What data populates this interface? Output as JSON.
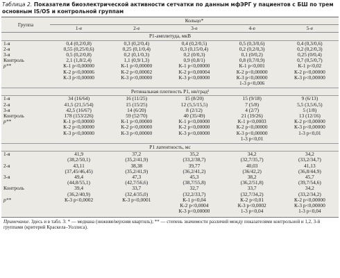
{
  "title_label": "Таблица 2.",
  "title": "Показатели биоэлектрической активности сетчатки по данным мфЭРГ у пациентов с БШ по трем основным IS/OS и контрольной группам",
  "header": {
    "group": "Группа",
    "ring": "Кольцо*",
    "rings": [
      "1-е",
      "2-е",
      "3-е",
      "4-е",
      "5-е"
    ]
  },
  "sections": [
    {
      "title": "P1-амплитуда, мкВ",
      "rows": [
        {
          "group": "1-я",
          "cells": [
            [
              "0,4 (0,2/0,8)"
            ],
            [
              "0,3 (0,2/0,4)"
            ],
            [
              "0,4 (0,2/0,5)"
            ],
            [
              "0,5 (0,3/0,6)"
            ],
            [
              "0,4 (0,3/0,6)"
            ]
          ]
        },
        {
          "group": "2-я",
          "cells": [
            [
              "0,55 (0,25/0,6)"
            ],
            [
              "0,25 (0,1/0,4)"
            ],
            [
              "0,3 (0,15/0,4)"
            ],
            [
              "0,2 (0,2/0,3)"
            ],
            [
              "0,2 (0,2/0,3)"
            ]
          ]
        },
        {
          "group": "3-я",
          "cells": [
            [
              "0,5 (0,2/0,8)"
            ],
            [
              "0,2 (0,1/0,3)"
            ],
            [
              "0,2 (0/0,3)"
            ],
            [
              "0,1 (0/0,2)"
            ],
            [
              "0,25 (0/0,4)"
            ]
          ]
        },
        {
          "group": "Контроль",
          "cells": [
            [
              "2,1 (1,8/2,4)"
            ],
            [
              "1,1 (0,9/1,3)"
            ],
            [
              "0,9 (0,8/1)"
            ],
            [
              "0,8 (0,7/0,9)"
            ],
            [
              "0,7 (0,5/0,7)"
            ]
          ]
        },
        {
          "group": "p**",
          "cells": [
            [
              "К-1 p<0,00000",
              "К-2 p<0,00006",
              "К-3 p<0,00000"
            ],
            [
              "К-1 p<0,00000",
              "К-2 p<0,00002",
              "К-3 p<0,00000"
            ],
            [
              "К-1 p<0,00000",
              "К-2 p<0,00004",
              "К-3 p<0,00000"
            ],
            [
              "К-1 p<0,001",
              "К-2 p<0,00000",
              "К-3 p<0,00000",
              "1-3 p<0,006"
            ],
            [
              "К-1 p<0,02",
              "К-2 p<0,00000",
              "К-3 p<0,00000"
            ]
          ]
        }
      ]
    },
    {
      "title": "Ретинальная плотность P1, нв/град²",
      "rows": [
        {
          "group": "1-я",
          "cells": [
            [
              "34 (16/64)"
            ],
            [
              "16 (11/25)"
            ],
            [
              "15 (8/20)"
            ],
            [
              "15 (9/18)"
            ],
            [
              "9 (6/13)"
            ]
          ]
        },
        {
          "group": "2-я",
          "cells": [
            [
              "41,5 (21,5/54)"
            ],
            [
              "15 (15/25)"
            ],
            [
              "12 (5,5/15,5)"
            ],
            [
              "7 (5/8)"
            ],
            [
              "5,5 (3,5/6,5)"
            ]
          ]
        },
        {
          "group": "3-я",
          "cells": [
            [
              "42,5 (16/67)"
            ],
            [
              "14 (6/20)"
            ],
            [
              "8 (2/12)"
            ],
            [
              "4 (2/7)"
            ],
            [
              "5 (1/8)"
            ]
          ]
        },
        {
          "group": "Контроль",
          "cells": [
            [
              "178 (153/226)"
            ],
            [
              "59 (52/70)"
            ],
            [
              "40 (35/49)"
            ],
            [
              "21 (19/26)"
            ],
            [
              "13 (12/16)"
            ]
          ]
        },
        {
          "group": "p**",
          "cells": [
            [
              "К-1 p<0,00000",
              "К-2 p<0,00000",
              "К-3 p<0,00000"
            ],
            [
              "К-1 p<0,00000",
              "К-2 p<0,00000",
              "К-3 p<0,00000"
            ],
            [
              "К-1 p<0,00000",
              "К-2 p<0,00000",
              "К-3 p<0,00000"
            ],
            [
              "К-1 p<0,0003",
              "К-2 p<0,00000",
              "К-3 p<0,00000",
              "1-3 p<0,01"
            ],
            [
              "К-2 p<0,00000",
              "К-3 p<0,00000",
              "1-3 p<0,01"
            ]
          ]
        }
      ]
    },
    {
      "title": "P1 латентность, мс",
      "rows": [
        {
          "group": "1-я",
          "cells": [
            [
              "41,9",
              "(38,2/50,1)"
            ],
            [
              "37,2",
              "(35,2/41,9)"
            ],
            [
              "35,2",
              "(33,2/38,7)"
            ],
            [
              "34,2",
              "(32,7/35,7)"
            ],
            [
              "34,2",
              "(33,2/34,7)"
            ]
          ]
        },
        {
          "group": "2-я",
          "cells": [
            [
              "43,11",
              "(37,45/46,45)"
            ],
            [
              "38,38",
              "(35,2/41,9)"
            ],
            [
              "39,77",
              "(36,2/41,2)"
            ],
            [
              "40,03",
              "(36/42,2)"
            ],
            [
              "41,13",
              "(36,8/44,9)"
            ]
          ]
        },
        {
          "group": "3-я",
          "cells": [
            [
              "49,4",
              "(44,8/55,1)"
            ],
            [
              "47,3",
              "(42,7/56,6)"
            ],
            [
              "45,3",
              "(38,7/55,8)"
            ],
            [
              "38,2",
              "(36,2/51,8)"
            ],
            [
              "45,7",
              "(39,7/54,6)"
            ]
          ]
        },
        {
          "group": "Контроль",
          "cells": [
            [
              "39,4",
              "(36,2/40,9)"
            ],
            [
              "33,7",
              "(32,4/35,0)"
            ],
            [
              "32,7",
              "(32,2/33,7)"
            ],
            [
              "33,7",
              "(32,7/34,2)"
            ],
            [
              "34,2",
              "(33,2/34,2)"
            ]
          ]
        },
        {
          "group": "p**",
          "cells": [
            [
              "К-3 p<0,0002"
            ],
            [
              "К-3 p<0,0001"
            ],
            [
              "К-1 p<0,04",
              "К-2 p<0,0004",
              "К-3 p<0,00000"
            ],
            [
              "К-2 p<0,01",
              "К-3 p<0,0002",
              "1-3 p<0,04"
            ],
            [
              "К-2 p<0,00000",
              "К-3 p<0,00000",
              "1-3 p<0,04"
            ]
          ]
        }
      ]
    }
  ],
  "note_label": "Примечание.",
  "note": "Здесь и в табл. 3: * — медиана (нижняя/верхняя квартиль); ** — степень значимости различий между показателями контрольной и 1,2, 3-й группами (критерий Краскела–Уоллиса)."
}
